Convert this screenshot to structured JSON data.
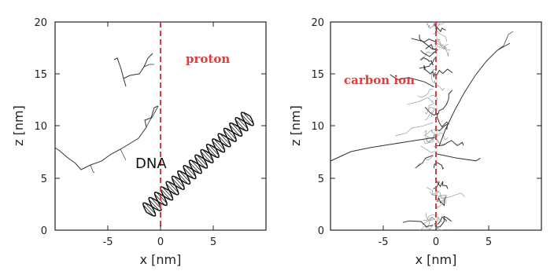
{
  "chart_data": [
    {
      "type": "scatter",
      "title": "",
      "xlabel": "x [nm]",
      "ylabel": "z [nm]",
      "xlim": [
        -10,
        10
      ],
      "ylim": [
        0,
        20
      ],
      "xticks": [
        -5,
        0,
        5
      ],
      "yticks": [
        0,
        5,
        10,
        15,
        20
      ],
      "annotations": [
        "proton",
        "DNA"
      ],
      "series": [
        {
          "name": "proton",
          "x": [
            0.2,
            0.2
          ],
          "y": [
            0,
            20
          ]
        },
        {
          "name": "DNA",
          "x": [
            -1.5,
            9
          ],
          "y": [
            1.2,
            11
          ]
        }
      ],
      "grid": false
    },
    {
      "type": "scatter",
      "title": "",
      "xlabel": "x [nm]",
      "ylabel": "z [nm]",
      "xlim": [
        -10,
        10
      ],
      "ylim": [
        0,
        20
      ],
      "xticks": [
        -5,
        0,
        5
      ],
      "yticks": [
        0,
        5,
        10,
        15,
        20
      ],
      "annotations": [
        "carbon ion"
      ],
      "series": [
        {
          "name": "carbon ion",
          "x": [
            0.2,
            0.2
          ],
          "y": [
            0,
            20
          ]
        }
      ],
      "grid": false
    }
  ],
  "colors": {
    "ion_path": "#e23b3b",
    "track": "#333333"
  }
}
